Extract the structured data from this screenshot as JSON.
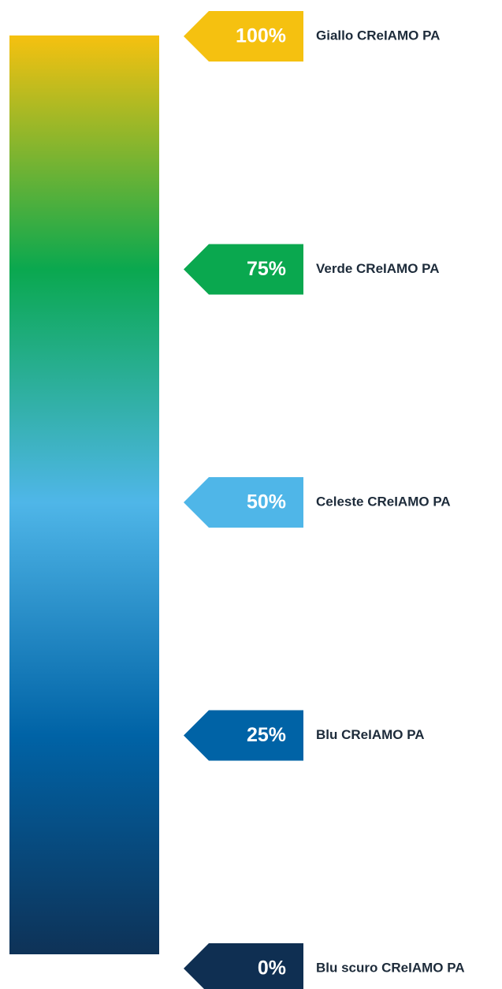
{
  "scale": {
    "stops": [
      {
        "percent": "100%",
        "name": "Giallo CReIAMO PA",
        "color": "#f5c110"
      },
      {
        "percent": "75%",
        "name": "Verde CReIAMO PA",
        "color": "#0aa84f"
      },
      {
        "percent": "50%",
        "name": "Celeste CReIAMO PA",
        "color": "#4fb6e8"
      },
      {
        "percent": "25%",
        "name": "Blu CReIAMO PA",
        "color": "#0063a6"
      },
      {
        "percent": "0%",
        "name": "Blu scuro CReIAMO PA",
        "color": "#0f2f52"
      }
    ]
  }
}
